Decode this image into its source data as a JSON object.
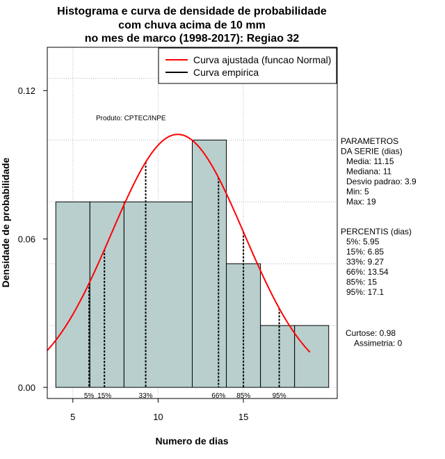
{
  "chart_data": {
    "type": "histogram",
    "title_lines": [
      "Histograma e curva de densidade de probabilidade",
      "com chuva acima de 10 mm",
      "no mes de marco (1998-2017): Regiao 32"
    ],
    "xlabel": "Numero de dias",
    "ylabel": "Densidade de probabilidade",
    "xlim": [
      3.5,
      20.5
    ],
    "ylim": [
      -0.0045,
      0.1375
    ],
    "x_ticks": [
      5,
      10,
      15
    ],
    "y_ticks": [
      0.0,
      0.06,
      0.12
    ],
    "y_tick_labels": [
      "0.00",
      "0.06",
      "0.12"
    ],
    "grid": true,
    "bars": [
      {
        "x0": 4,
        "x1": 6,
        "density": 0.075
      },
      {
        "x0": 6,
        "x1": 8,
        "density": 0.075
      },
      {
        "x0": 8,
        "x1": 12,
        "density": 0.075
      },
      {
        "x0": 12,
        "x1": 14,
        "density": 0.1
      },
      {
        "x0": 14,
        "x1": 16,
        "density": 0.05
      },
      {
        "x0": 16,
        "x1": 18,
        "density": 0.025
      },
      {
        "x0": 18,
        "x1": 20,
        "density": 0.025
      }
    ],
    "bar_color": "#b8cfce",
    "normal_fit": {
      "mean": 11.15,
      "sd": 3.9,
      "x_from": 3.5,
      "x_to": 18.9,
      "color": "#ff0000"
    },
    "percentile_lines": [
      {
        "label": "5%",
        "x": 5.95
      },
      {
        "label": "15%",
        "x": 6.85
      },
      {
        "label": "33%",
        "x": 9.27
      },
      {
        "label": "66%",
        "x": 13.54
      },
      {
        "label": "85%",
        "x": 15
      },
      {
        "label": "95%",
        "x": 17.1
      }
    ],
    "legend": {
      "position": "top-right",
      "entries": [
        {
          "label": "Curva ajustada (funcao Normal)",
          "color": "#ff0000"
        },
        {
          "label": "Curva empirica",
          "color": "#000000"
        }
      ]
    },
    "annotation": "Produto: CPTEC/INPE",
    "parametros_lines": [
      "PARAMETROS",
      "DA SERIE (dias)",
      "Media: 11.15",
      "Mediana: 11",
      "Desvio padrao: 3.9",
      "Min: 5",
      "Max: 19"
    ],
    "percentis_lines": [
      "PERCENTIS (dias)",
      "5%: 5.95",
      "15%: 6.85",
      "33%: 9.27",
      "66%: 13.54",
      "85%: 15",
      "95%: 17.1"
    ],
    "shape_lines": [
      "Curtose: 0.98",
      "Assimetria: 0"
    ]
  }
}
